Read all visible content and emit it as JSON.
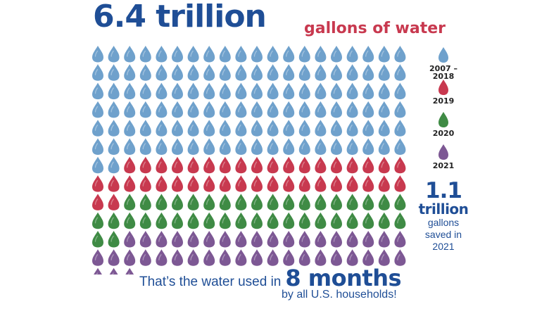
{
  "headline": {
    "number": "6.4 trillion",
    "unit": "gallons of water"
  },
  "colors": {
    "headline_blue": "#1f4e96",
    "headline_red": "#c8394f",
    "drop_2007_2018": "#6fa1cc",
    "drop_2019": "#c8394f",
    "drop_2020": "#3f8b45",
    "drop_2021": "#7d5894"
  },
  "legend": [
    {
      "label": "2007 – 2018",
      "color": "#6fa1cc",
      "icon": "water-drop-icon"
    },
    {
      "label": "2019",
      "color": "#c8394f",
      "icon": "water-drop-icon"
    },
    {
      "label": "2020",
      "color": "#3f8b45",
      "icon": "water-drop-icon"
    },
    {
      "label": "2021",
      "color": "#7d5894",
      "icon": "water-drop-icon"
    }
  ],
  "saved": {
    "number": "1.1",
    "unit": "trillion",
    "caption_line1": "gallons",
    "caption_line2": "saved in",
    "caption_line3": "2021"
  },
  "footer": {
    "prefix": "That’s the water used in",
    "highlight": "8 months",
    "line2": "by all U.S. households!"
  },
  "chart_data": {
    "type": "pictograph",
    "unit": "water drop",
    "columns": 20,
    "order": "row-major, left to right, top to bottom",
    "series": [
      {
        "name": "2007 – 2018",
        "drops": 122,
        "color": "#6fa1cc"
      },
      {
        "name": "2019",
        "drops": 40,
        "color": "#c8394f"
      },
      {
        "name": "2020",
        "drops": 40,
        "color": "#3f8b45"
      },
      {
        "name": "2021",
        "drops": 41,
        "color": "#7d5894"
      }
    ],
    "total_drops": 243
  }
}
